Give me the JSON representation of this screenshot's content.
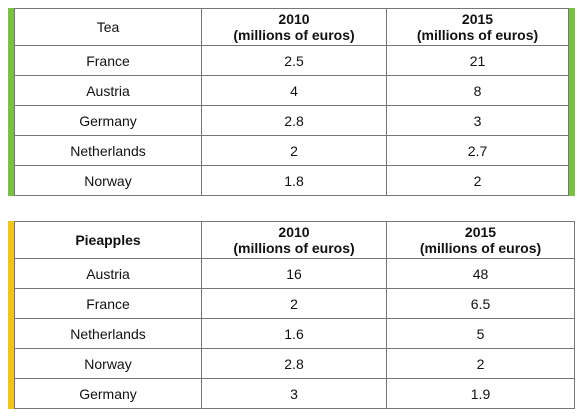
{
  "tables": [
    {
      "heading": "Tea",
      "col2_year": "2010",
      "col2_unit": "(millions of euros)",
      "col3_year": "2015",
      "col3_unit": "(millions of euros)",
      "rows": [
        {
          "country": "France",
          "v2010": "2.5",
          "v2015": "21"
        },
        {
          "country": "Austria",
          "v2010": "4",
          "v2015": "8"
        },
        {
          "country": "Germany",
          "v2010": "2.8",
          "v2015": "3"
        },
        {
          "country": "Netherlands",
          "v2010": "2",
          "v2015": "2.7"
        },
        {
          "country": "Norway",
          "v2010": "1.8",
          "v2015": "2"
        }
      ]
    },
    {
      "heading": "Pieapples",
      "col2_year": "2010",
      "col2_unit": "(millions of euros)",
      "col3_year": "2015",
      "col3_unit": "(millions of euros)",
      "rows": [
        {
          "country": "Austria",
          "v2010": "16",
          "v2015": "48"
        },
        {
          "country": "France",
          "v2010": "2",
          "v2015": "6.5"
        },
        {
          "country": "Netherlands",
          "v2010": "1.6",
          "v2015": "5"
        },
        {
          "country": "Norway",
          "v2010": "2.8",
          "v2015": "2"
        },
        {
          "country": "Germany",
          "v2010": "3",
          "v2015": "1.9"
        }
      ]
    }
  ],
  "colors": {
    "tea_accent": "#7ac142",
    "pineapple_accent": "#f0c419",
    "border": "#777777"
  }
}
